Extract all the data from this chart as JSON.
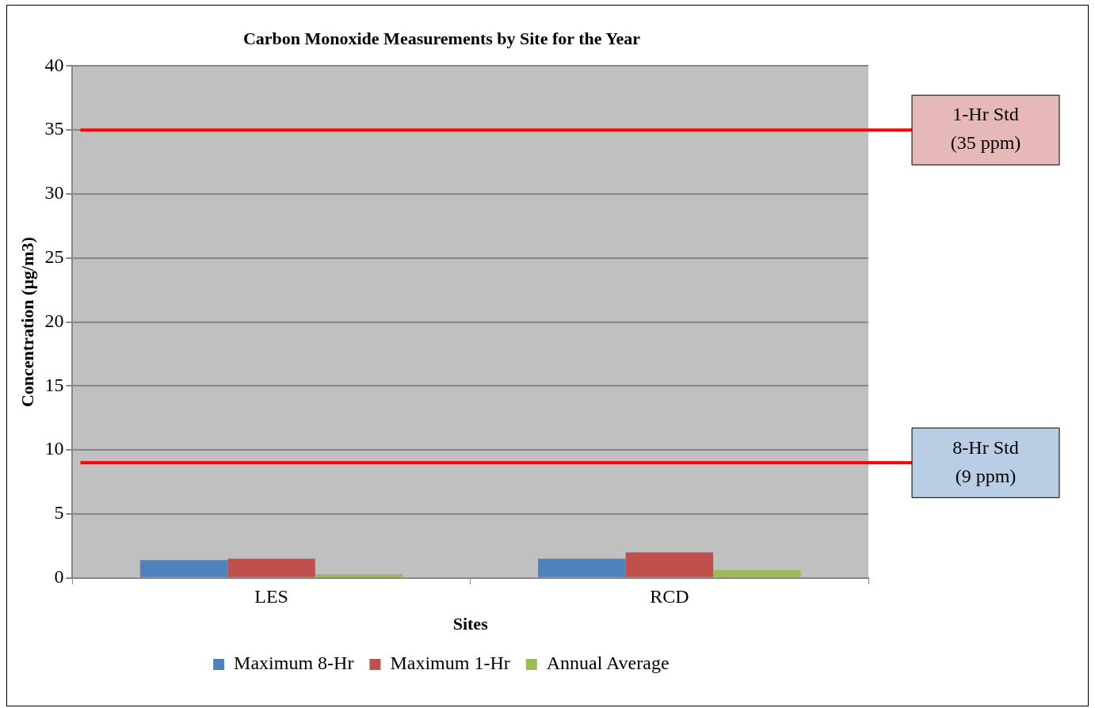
{
  "chart_data": {
    "type": "bar",
    "title": "Carbon Monoxide Measurements by Site for the Year",
    "xlabel": "Sites",
    "ylabel": "Concentration (µg/m3)",
    "categories": [
      "LES",
      "RCD"
    ],
    "series": [
      {
        "name": "Maximum 8-Hr",
        "color": "#4f81bd",
        "values": [
          1.4,
          1.5
        ]
      },
      {
        "name": "Maximum 1-Hr",
        "color": "#c0504d",
        "values": [
          1.5,
          2.0
        ]
      },
      {
        "name": "Annual Average",
        "color": "#9bbb59",
        "values": [
          0.3,
          0.6
        ]
      }
    ],
    "ylim": [
      0,
      40
    ],
    "yticks": [
      0,
      5,
      10,
      15,
      20,
      25,
      30,
      35,
      40
    ],
    "grid": "y",
    "legend": "bottom",
    "ref_lines": [
      {
        "axis": "y",
        "value": 35,
        "label": "1-Hr Std\n(35 ppm)",
        "color": "#ff0000"
      },
      {
        "axis": "y",
        "value": 9,
        "label": "8-Hr Std\n(9 ppm)",
        "color": "#ff0000"
      }
    ]
  }
}
